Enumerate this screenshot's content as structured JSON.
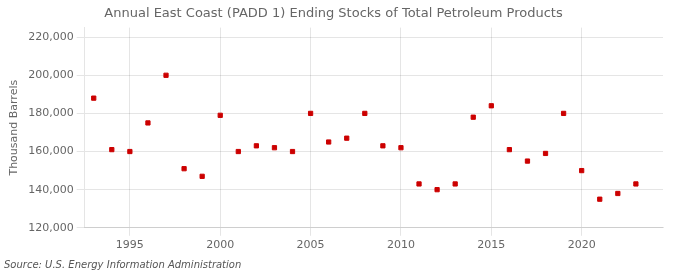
{
  "chart_data": {
    "type": "scatter",
    "title": "Annual East Coast (PADD 1) Ending Stocks of Total Petroleum Products",
    "ylabel": "Thousand Barrels",
    "annotation": "Source: U.S. Energy Information Administration",
    "x": [
      1993,
      1994,
      1995,
      1996,
      1997,
      1998,
      1999,
      2000,
      2001,
      2002,
      2003,
      2004,
      2005,
      2006,
      2007,
      2008,
      2009,
      2010,
      2011,
      2012,
      2013,
      2014,
      2015,
      2016,
      2017,
      2018,
      2019,
      2020,
      2021,
      2022,
      2023
    ],
    "values": [
      188000,
      161000,
      160000,
      175000,
      200000,
      151000,
      147000,
      179000,
      160000,
      163000,
      162000,
      160000,
      180000,
      165000,
      167000,
      180000,
      163000,
      162000,
      143000,
      140000,
      143000,
      178000,
      184000,
      161000,
      155000,
      159000,
      180000,
      150000,
      135000,
      138000,
      143000
    ],
    "color": "#cc0000",
    "marker": "square",
    "xlim": [
      1992.5,
      2024.5
    ],
    "xticks": [
      1995,
      2000,
      2005,
      2010,
      2015,
      2020
    ],
    "ylim": [
      120000,
      225000
    ],
    "yticks": [
      {
        "value": 120000,
        "label": "120,000"
      },
      {
        "value": 140000,
        "label": "140,000"
      },
      {
        "value": 160000,
        "label": "160,000"
      },
      {
        "value": 180000,
        "label": "180,000"
      },
      {
        "value": 200000,
        "label": "200,000"
      },
      {
        "value": 220000,
        "label": "220,000"
      }
    ],
    "grid": true
  }
}
